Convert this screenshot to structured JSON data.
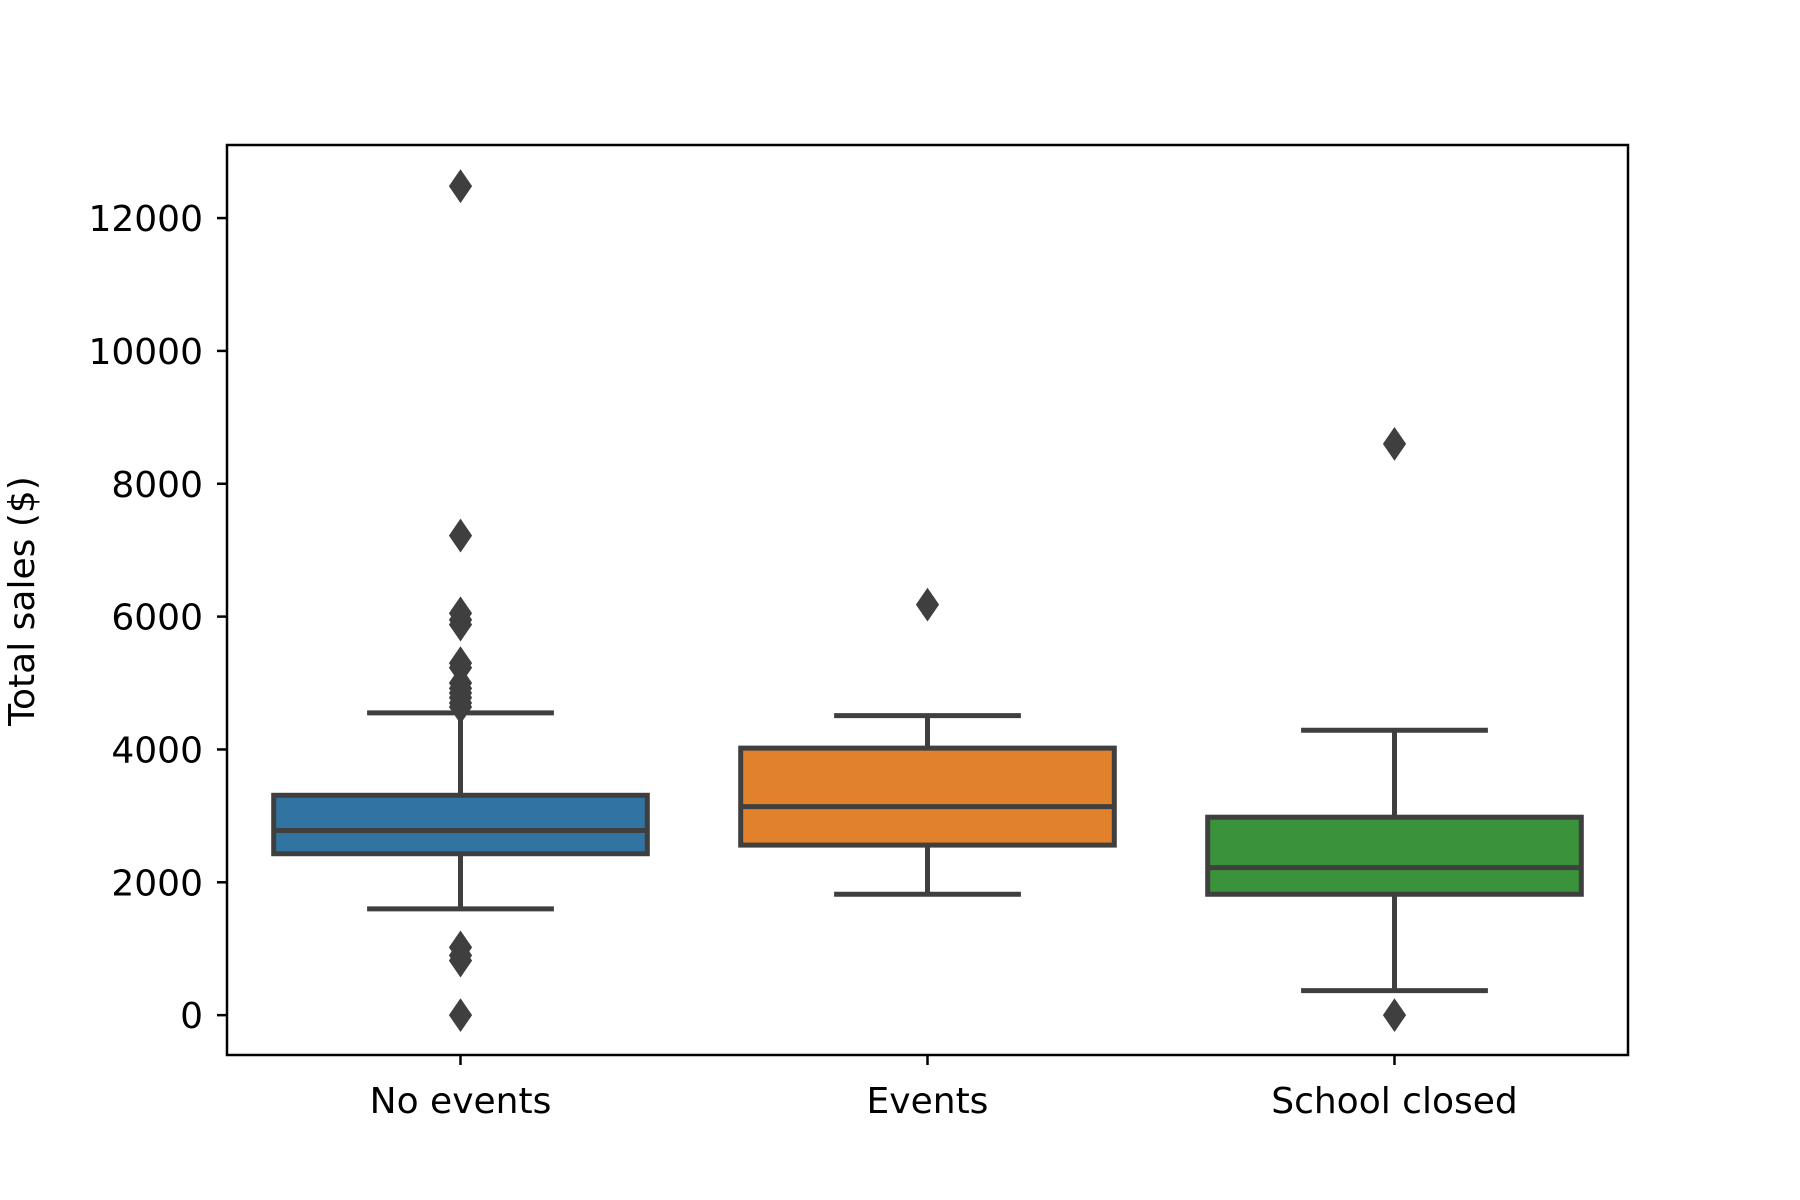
{
  "chart_data": {
    "type": "box",
    "title": "",
    "xlabel": "",
    "ylabel": "Total sales ($)",
    "ylim": [
      -600,
      13100
    ],
    "yticks": [
      0,
      2000,
      4000,
      6000,
      8000,
      10000,
      12000
    ],
    "grid": false,
    "categories": [
      "No events",
      "Events",
      "School closed"
    ],
    "boxes": [
      {
        "category": "No events",
        "color": "#3274a1",
        "whisker_low": 1600,
        "q1": 2430,
        "median": 2780,
        "q3": 3310,
        "whisker_high": 4550,
        "outliers": [
          12480,
          7220,
          6050,
          5950,
          5880,
          5300,
          5230,
          5000,
          4920,
          4850,
          4780,
          4700,
          4640,
          1020,
          900,
          820,
          0
        ]
      },
      {
        "category": "Events",
        "color": "#e1812c",
        "whisker_low": 1820,
        "q1": 2560,
        "median": 3140,
        "q3": 4020,
        "whisker_high": 4510,
        "outliers": [
          6180
        ]
      },
      {
        "category": "School closed",
        "color": "#3a923a",
        "whisker_low": 370,
        "q1": 1820,
        "median": 2220,
        "q3": 2980,
        "whisker_high": 4290,
        "outliers": [
          8600,
          0
        ]
      }
    ]
  }
}
